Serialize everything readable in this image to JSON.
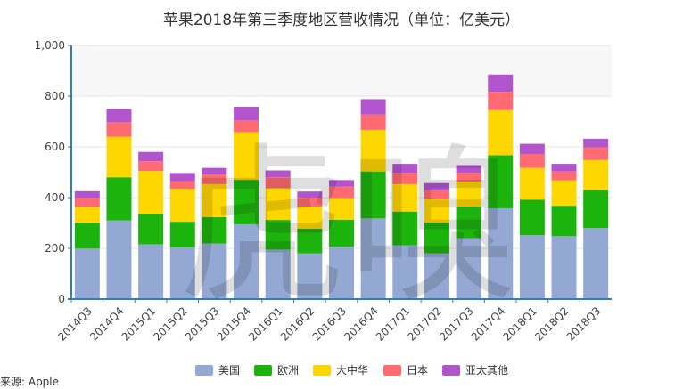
{
  "source_label": "来源: Apple",
  "watermark": "虎嗅",
  "chart_data": {
    "type": "bar",
    "stacked": true,
    "title": "苹果2018年第三季度地区营收情况（单位：亿美元）",
    "xlabel": "",
    "ylabel": "",
    "ylim": [
      0,
      1000
    ],
    "yticks": [
      "0",
      "200",
      "400",
      "600",
      "800",
      "1,000"
    ],
    "grid": true,
    "legend_position": "bottom",
    "categories": [
      "2014Q3",
      "2014Q4",
      "2015Q1",
      "2015Q2",
      "2015Q3",
      "2015Q4",
      "2016Q1",
      "2016Q2",
      "2016Q3",
      "2016Q4",
      "2017Q1",
      "2017Q2",
      "2017Q3",
      "2017Q4",
      "2018Q1",
      "2018Q2",
      "2018Q3"
    ],
    "series": [
      {
        "name": "美国",
        "color": "#93a9d3",
        "values": [
          199,
          310,
          216,
          204,
          219,
          295,
          195,
          180,
          206,
          318,
          212,
          180,
          240,
          358,
          252,
          248,
          280
        ]
      },
      {
        "name": "欧洲",
        "color": "#1db30d",
        "values": [
          102,
          170,
          121,
          101,
          104,
          175,
          117,
          98,
          107,
          185,
          133,
          122,
          125,
          209,
          140,
          120,
          150
        ]
      },
      {
        "name": "大中华",
        "color": "#ffd700",
        "values": [
          63,
          160,
          168,
          130,
          130,
          188,
          125,
          87,
          85,
          164,
          108,
          92,
          98,
          178,
          125,
          100,
          118
        ]
      },
      {
        "name": "日本",
        "color": "#ff6b70",
        "values": [
          35,
          57,
          38,
          30,
          38,
          46,
          43,
          35,
          45,
          60,
          45,
          35,
          35,
          72,
          55,
          35,
          50
        ]
      },
      {
        "name": "亚太其他",
        "color": "#b354cf",
        "values": [
          26,
          52,
          37,
          32,
          26,
          54,
          27,
          24,
          26,
          61,
          35,
          28,
          30,
          68,
          40,
          30,
          34
        ]
      }
    ]
  }
}
